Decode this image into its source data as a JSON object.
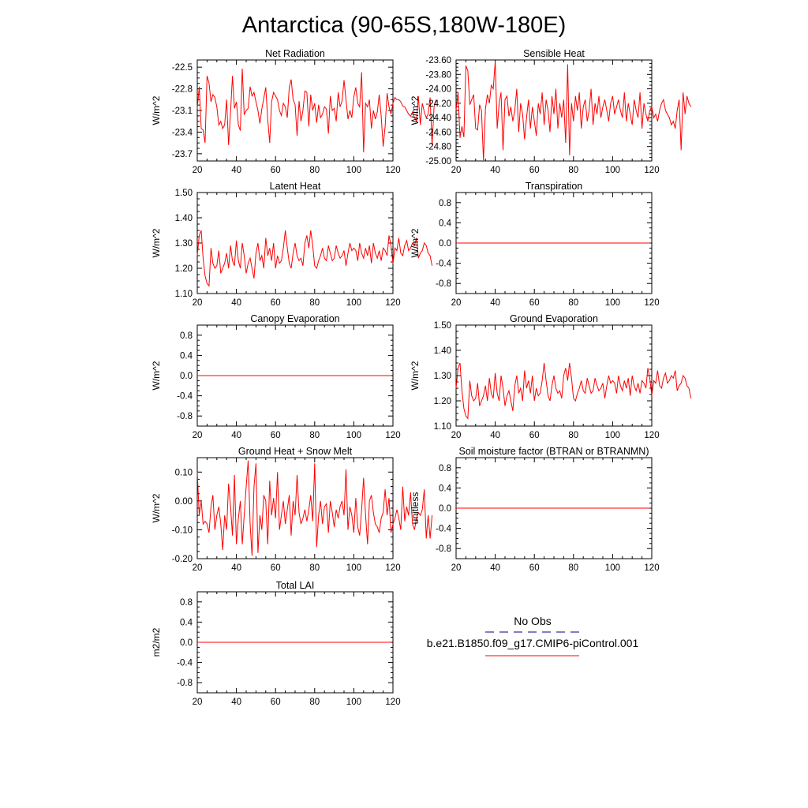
{
  "figure_title": "Antarctica (90-65S,180W-180E)",
  "legend": {
    "obs_label": "No Obs",
    "model_label": "b.e21.B1850.f09_g17.CMIP6-piControl.001",
    "obs_color": "#000080",
    "model_color": "#ff0000"
  },
  "chart_data": [
    {
      "type": "line",
      "title": "Net Radiation",
      "xlabel": "",
      "ylabel": "W/m^2",
      "xlim": [
        20,
        120
      ],
      "ylim": [
        -23.8,
        -22.4
      ],
      "xticks": [
        20,
        40,
        60,
        80,
        100,
        120
      ],
      "xtick_labels": [
        "20",
        "40",
        "60",
        "80",
        "100",
        "120"
      ],
      "yticks": [
        -22.5,
        -22.8,
        -23.1,
        -23.4,
        -23.7
      ],
      "ytick_labels": [
        "-22.5",
        "-22.8",
        "-23.1",
        "-23.4",
        "-23.7"
      ],
      "series": [
        {
          "name": "b.e21.B1850.f09_g17.CMIP6-piControl.001",
          "x_start": 20,
          "x_step": 1,
          "values": [
            -23.07,
            -22.77,
            -23.35,
            -23.37,
            -23.55,
            -22.62,
            -22.72,
            -22.98,
            -22.88,
            -22.92,
            -23.05,
            -23.3,
            -23.25,
            -23.35,
            -23.3,
            -22.95,
            -23.58,
            -23.12,
            -22.62,
            -23.07,
            -22.98,
            -23.3,
            -23.38,
            -22.52,
            -23.16,
            -23.1,
            -23.07,
            -22.77,
            -22.9,
            -22.85,
            -22.98,
            -23.1,
            -23.28,
            -23.08,
            -22.93,
            -22.78,
            -23.22,
            -23.55,
            -22.98,
            -22.85,
            -22.9,
            -22.95,
            -23.1,
            -23.17,
            -23.0,
            -23.05,
            -23.2,
            -22.78,
            -22.67,
            -22.95,
            -23.02,
            -23.45,
            -22.97,
            -23.25,
            -23.1,
            -22.83,
            -22.85,
            -23.32,
            -22.88,
            -23.1,
            -23.0,
            -23.27,
            -23.02,
            -23.2,
            -23.15,
            -23.05,
            -23.08,
            -23.42,
            -22.9,
            -23.1,
            -23.07,
            -23.25,
            -22.85,
            -23.05,
            -22.97,
            -22.68,
            -22.95,
            -23.22,
            -23.1,
            -23.2,
            -22.91,
            -22.78,
            -23.0,
            -23.05,
            -22.57,
            -23.68,
            -23.0,
            -23.05,
            -22.95,
            -23.35,
            -23.1,
            -23.22,
            -23.12,
            -22.88,
            -23.18,
            -23.6,
            -23.32,
            -22.86,
            -23.05,
            -23.15,
            -23.0,
            -22.92,
            -22.95,
            -22.95,
            -22.98,
            -23.04,
            -23.05,
            -23.1,
            -23.15,
            -23.18,
            -23.12,
            -23.2,
            -23.25,
            -22.9,
            -23.3,
            -23.0,
            -23.12,
            -23.2,
            -23.15,
            -22.92,
            -23.58,
            -23.05,
            -22.95
          ]
        }
      ]
    },
    {
      "type": "line",
      "title": "Sensible Heat",
      "xlabel": "",
      "ylabel": "W/m^2",
      "xlim": [
        20,
        120
      ],
      "ylim": [
        -25.0,
        -23.6
      ],
      "xticks": [
        20,
        40,
        60,
        80,
        100,
        120
      ],
      "xtick_labels": [
        "20",
        "40",
        "60",
        "80",
        "100",
        "120"
      ],
      "yticks": [
        -23.6,
        -23.8,
        -24.0,
        -24.2,
        -24.4,
        -24.6,
        -24.8,
        -25.0
      ],
      "ytick_labels": [
        "-23.60",
        "-23.80",
        "-24.00",
        "-24.20",
        "-24.40",
        "-24.60",
        "-24.80",
        "-25.00"
      ],
      "series": [
        {
          "name": "b.e21.B1850.f09_g17.CMIP6-piControl.001",
          "x_start": 20,
          "x_step": 1,
          "values": [
            -24.3,
            -24.05,
            -24.68,
            -24.52,
            -24.67,
            -23.68,
            -23.75,
            -24.22,
            -24.15,
            -24.08,
            -24.55,
            -24.57,
            -24.22,
            -24.3,
            -24.99,
            -24.28,
            -24.08,
            -24.2,
            -23.95,
            -24.0,
            -23.62,
            -24.55,
            -24.2,
            -24.05,
            -24.85,
            -24.15,
            -24.1,
            -24.38,
            -24.25,
            -24.45,
            -24.3,
            -24.0,
            -24.6,
            -24.2,
            -24.35,
            -24.7,
            -24.4,
            -24.15,
            -24.55,
            -24.25,
            -24.45,
            -24.65,
            -24.2,
            -24.35,
            -24.05,
            -24.5,
            -24.15,
            -24.3,
            -24.6,
            -24.1,
            -24.35,
            -24.0,
            -24.55,
            -24.2,
            -24.4,
            -24.15,
            -24.75,
            -23.66,
            -24.92,
            -24.2,
            -24.45,
            -24.1,
            -24.3,
            -24.05,
            -24.55,
            -24.25,
            -24.15,
            -24.45,
            -24.3,
            -24.0,
            -24.5,
            -24.2,
            -24.35,
            -24.1,
            -24.4,
            -24.25,
            -24.15,
            -24.3,
            -24.45,
            -24.2,
            -24.1,
            -24.35,
            -24.25,
            -24.15,
            -24.3,
            -24.4,
            -24.05,
            -24.45,
            -24.2,
            -24.35,
            -24.5,
            -24.15,
            -24.3,
            -24.4,
            -24.05,
            -24.55,
            -24.2,
            -24.35,
            -24.45,
            -24.3,
            -24.25,
            -24.4,
            -24.35,
            -24.45,
            -24.3,
            -24.2,
            -24.15,
            -24.3,
            -24.35,
            -24.4,
            -24.5,
            -24.45,
            -24.55,
            -24.3,
            -24.15,
            -24.85,
            -24.05,
            -24.35,
            -24.1,
            -24.2,
            -24.25
          ]
        }
      ]
    },
    {
      "type": "line",
      "title": "Latent Heat",
      "xlabel": "",
      "ylabel": "W/m^2",
      "xlim": [
        20,
        120
      ],
      "ylim": [
        1.1,
        1.5
      ],
      "xticks": [
        20,
        40,
        60,
        80,
        100,
        120
      ],
      "xtick_labels": [
        "20",
        "40",
        "60",
        "80",
        "100",
        "120"
      ],
      "yticks": [
        1.1,
        1.2,
        1.3,
        1.4,
        1.5
      ],
      "ytick_labels": [
        "1.10",
        "1.20",
        "1.30",
        "1.40",
        "1.50"
      ],
      "series": [
        {
          "name": "b.e21.B1850.f09_g17.CMIP6-piControl.001",
          "x_start": 20,
          "x_step": 1,
          "values": [
            1.25,
            1.33,
            1.35,
            1.24,
            1.17,
            1.14,
            1.13,
            1.28,
            1.22,
            1.2,
            1.21,
            1.27,
            1.18,
            1.2,
            1.22,
            1.26,
            1.2,
            1.29,
            1.23,
            1.21,
            1.31,
            1.23,
            1.2,
            1.3,
            1.25,
            1.18,
            1.22,
            1.24,
            1.2,
            1.16,
            1.26,
            1.3,
            1.23,
            1.25,
            1.2,
            1.32,
            1.25,
            1.28,
            1.23,
            1.3,
            1.2,
            1.25,
            1.22,
            1.23,
            1.28,
            1.35,
            1.28,
            1.22,
            1.2,
            1.26,
            1.3,
            1.25,
            1.23,
            1.24,
            1.21,
            1.3,
            1.33,
            1.28,
            1.35,
            1.29,
            1.21,
            1.2,
            1.23,
            1.25,
            1.28,
            1.24,
            1.23,
            1.29,
            1.26,
            1.23,
            1.24,
            1.29,
            1.26,
            1.24,
            1.25,
            1.27,
            1.21,
            1.26,
            1.3,
            1.27,
            1.28,
            1.27,
            1.23,
            1.3,
            1.26,
            1.24,
            1.28,
            1.25,
            1.29,
            1.22,
            1.3,
            1.26,
            1.24,
            1.27,
            1.23,
            1.28,
            1.27,
            1.25,
            1.33,
            1.29,
            1.22,
            1.28,
            1.27,
            1.32,
            1.26,
            1.25,
            1.29,
            1.31,
            1.27,
            1.28,
            1.3,
            1.29,
            1.32,
            1.24,
            1.26,
            1.27,
            1.3,
            1.29,
            1.26,
            1.25,
            1.21
          ]
        }
      ]
    },
    {
      "type": "line",
      "title": "Transpiration",
      "xlabel": "",
      "ylabel": "W/m^2",
      "xlim": [
        20,
        120
      ],
      "ylim": [
        -1.0,
        1.0
      ],
      "xticks": [
        20,
        40,
        60,
        80,
        100,
        120
      ],
      "xtick_labels": [
        "20",
        "40",
        "60",
        "80",
        "100",
        "120"
      ],
      "yticks": [
        0.8,
        0.4,
        0.0,
        -0.4,
        -0.8
      ],
      "ytick_labels": [
        "0.8",
        "0.4",
        "0.0",
        "-0.4",
        "-0.8"
      ],
      "series": [
        {
          "name": "b.e21.B1850.f09_g17.CMIP6-piControl.001",
          "x": [
            20,
            119
          ],
          "values": [
            0.0,
            0.0
          ]
        }
      ]
    },
    {
      "type": "line",
      "title": "Canopy Evaporation",
      "xlabel": "",
      "ylabel": "W/m^2",
      "xlim": [
        20,
        120
      ],
      "ylim": [
        -1.0,
        1.0
      ],
      "xticks": [
        20,
        40,
        60,
        80,
        100,
        120
      ],
      "xtick_labels": [
        "20",
        "40",
        "60",
        "80",
        "100",
        "120"
      ],
      "yticks": [
        0.8,
        0.4,
        0.0,
        -0.4,
        -0.8
      ],
      "ytick_labels": [
        "0.8",
        "0.4",
        "0.0",
        "-0.4",
        "-0.8"
      ],
      "series": [
        {
          "name": "b.e21.B1850.f09_g17.CMIP6-piControl.001",
          "x": [
            20,
            119
          ],
          "values": [
            0.0,
            0.0
          ]
        }
      ]
    },
    {
      "type": "line",
      "title": "Ground Evaporation",
      "xlabel": "",
      "ylabel": "W/m^2",
      "xlim": [
        20,
        120
      ],
      "ylim": [
        1.1,
        1.5
      ],
      "xticks": [
        20,
        40,
        60,
        80,
        100,
        120
      ],
      "xtick_labels": [
        "20",
        "40",
        "60",
        "80",
        "100",
        "120"
      ],
      "yticks": [
        1.1,
        1.2,
        1.3,
        1.4,
        1.5
      ],
      "ytick_labels": [
        "1.10",
        "1.20",
        "1.30",
        "1.40",
        "1.50"
      ],
      "series": [
        {
          "name": "b.e21.B1850.f09_g17.CMIP6-piControl.001",
          "x_start": 20,
          "x_step": 1,
          "values": [
            1.25,
            1.33,
            1.35,
            1.24,
            1.17,
            1.14,
            1.13,
            1.28,
            1.22,
            1.2,
            1.21,
            1.27,
            1.18,
            1.2,
            1.22,
            1.26,
            1.2,
            1.29,
            1.23,
            1.21,
            1.31,
            1.23,
            1.2,
            1.3,
            1.25,
            1.18,
            1.22,
            1.24,
            1.2,
            1.16,
            1.26,
            1.3,
            1.23,
            1.25,
            1.2,
            1.32,
            1.25,
            1.28,
            1.23,
            1.3,
            1.2,
            1.25,
            1.22,
            1.23,
            1.28,
            1.35,
            1.28,
            1.22,
            1.2,
            1.26,
            1.3,
            1.25,
            1.23,
            1.24,
            1.21,
            1.3,
            1.33,
            1.28,
            1.35,
            1.29,
            1.21,
            1.2,
            1.23,
            1.25,
            1.28,
            1.24,
            1.23,
            1.29,
            1.26,
            1.23,
            1.24,
            1.29,
            1.26,
            1.24,
            1.25,
            1.27,
            1.21,
            1.26,
            1.3,
            1.27,
            1.28,
            1.27,
            1.23,
            1.3,
            1.26,
            1.24,
            1.28,
            1.25,
            1.29,
            1.22,
            1.3,
            1.26,
            1.24,
            1.27,
            1.23,
            1.28,
            1.27,
            1.25,
            1.33,
            1.29,
            1.22,
            1.28,
            1.27,
            1.32,
            1.26,
            1.25,
            1.29,
            1.31,
            1.27,
            1.28,
            1.3,
            1.29,
            1.32,
            1.24,
            1.26,
            1.27,
            1.3,
            1.29,
            1.26,
            1.25,
            1.21
          ]
        }
      ]
    },
    {
      "type": "line",
      "title": "Ground Heat + Snow Melt",
      "xlabel": "",
      "ylabel": "W/m^2",
      "xlim": [
        20,
        120
      ],
      "ylim": [
        -0.2,
        0.15
      ],
      "xticks": [
        20,
        40,
        60,
        80,
        100,
        120
      ],
      "xtick_labels": [
        "20",
        "40",
        "60",
        "80",
        "100",
        "120"
      ],
      "yticks": [
        0.1,
        0.0,
        -0.1,
        -0.2
      ],
      "ytick_labels": [
        "0.10",
        "0.00",
        "-0.10",
        "-0.20"
      ],
      "series": [
        {
          "name": "b.e21.B1850.f09_g17.CMIP6-piControl.001",
          "x_start": 20,
          "x_step": 1,
          "values": [
            0.1,
            -0.05,
            0.0,
            -0.08,
            -0.07,
            -0.08,
            -0.11,
            -0.02,
            0.02,
            -0.1,
            -0.05,
            -0.02,
            -0.08,
            -0.17,
            -0.05,
            -0.1,
            0.06,
            -0.02,
            -0.12,
            0.09,
            -0.15,
            -0.06,
            0.0,
            -0.15,
            -0.05,
            0.05,
            0.14,
            -0.08,
            -0.19,
            0.05,
            0.13,
            -0.18,
            -0.05,
            -0.1,
            0.02,
            0.0,
            -0.15,
            0.07,
            -0.05,
            0.01,
            -0.06,
            0.1,
            -0.1,
            -0.05,
            0.0,
            -0.08,
            -0.03,
            0.02,
            -0.12,
            0.0,
            -0.05,
            0.09,
            -0.04,
            -0.08,
            -0.06,
            -0.03,
            -0.07,
            -0.03,
            0.02,
            -0.07,
            0.13,
            -0.16,
            -0.05,
            0.0,
            -0.08,
            -0.02,
            -0.01,
            -0.11,
            0.0,
            -0.04,
            -0.09,
            -0.03,
            -0.06,
            -0.02,
            0.0,
            -0.05,
            0.11,
            -0.1,
            -0.02,
            -0.05,
            -0.11,
            0.01,
            -0.09,
            -0.12,
            -0.03,
            0.08,
            -0.05,
            -0.15,
            0.0,
            0.02,
            -0.04,
            -0.08,
            -0.09,
            -0.11,
            -0.06,
            -0.04,
            0.04,
            -0.05,
            0.01,
            -0.11,
            -0.08,
            -0.06,
            -0.03,
            -0.06,
            -0.1,
            0.05,
            -0.07,
            -0.02,
            -0.05,
            0.03,
            -0.08,
            -0.1,
            -0.06,
            -0.04,
            -0.05,
            -0.03,
            0.04,
            -0.13,
            -0.05,
            -0.13,
            -0.05
          ]
        }
      ]
    },
    {
      "type": "line",
      "title": "Soil moisture factor (BTRAN or BTRANMN)",
      "xlabel": "",
      "ylabel": "unitless",
      "xlim": [
        20,
        120
      ],
      "ylim": [
        -1.0,
        1.0
      ],
      "xticks": [
        20,
        40,
        60,
        80,
        100,
        120
      ],
      "xtick_labels": [
        "20",
        "40",
        "60",
        "80",
        "100",
        "120"
      ],
      "yticks": [
        0.8,
        0.4,
        0.0,
        -0.4,
        -0.8
      ],
      "ytick_labels": [
        "0.8",
        "0.4",
        "0.0",
        "-0.4",
        "-0.8"
      ],
      "series": [
        {
          "name": "b.e21.B1850.f09_g17.CMIP6-piControl.001",
          "x": [
            20,
            119
          ],
          "values": [
            0.0,
            0.0
          ]
        }
      ]
    },
    {
      "type": "line",
      "title": "Total LAI",
      "xlabel": "",
      "ylabel": "m2/m2",
      "xlim": [
        20,
        120
      ],
      "ylim": [
        -1.0,
        1.0
      ],
      "xticks": [
        20,
        40,
        60,
        80,
        100,
        120
      ],
      "xtick_labels": [
        "20",
        "40",
        "60",
        "80",
        "100",
        "120"
      ],
      "yticks": [
        0.8,
        0.4,
        0.0,
        -0.4,
        -0.8
      ],
      "ytick_labels": [
        "0.8",
        "0.4",
        "0.0",
        "-0.4",
        "-0.8"
      ],
      "series": [
        {
          "name": "b.e21.B1850.f09_g17.CMIP6-piControl.001",
          "x": [
            20,
            119
          ],
          "values": [
            0.0,
            0.0
          ]
        }
      ]
    }
  ]
}
